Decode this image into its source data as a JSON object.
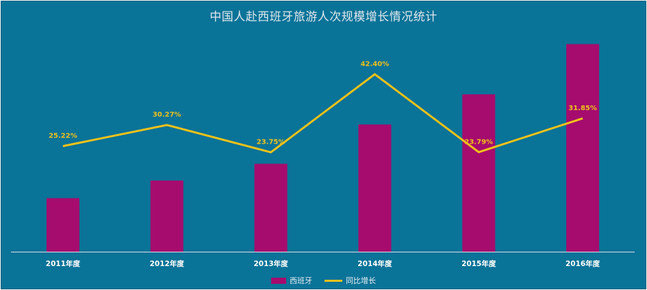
{
  "chart_data": {
    "type": "bar+line",
    "title": "中国人赴西班牙旅游人次规模增长情况统计",
    "categories": [
      "2011年度",
      "2012年度",
      "2013年度",
      "2014年度",
      "2015年度",
      "2016年度"
    ],
    "series": [
      {
        "name": "西班牙",
        "type": "bar",
        "axis": "primary",
        "values": [
          64,
          85,
          105,
          152,
          188,
          248
        ],
        "color": "#a50c6e"
      },
      {
        "name": "同比增长",
        "type": "line",
        "axis": "secondary",
        "values": [
          25.22,
          30.27,
          23.75,
          42.4,
          23.79,
          31.85
        ],
        "labels": [
          "25.22%",
          "30.27%",
          "23.75%",
          "42.40%",
          "23.79%",
          "31.85%"
        ],
        "color": "#f2c218"
      }
    ],
    "ylim": [
      0,
      250
    ],
    "y2lim": [
      0,
      50
    ],
    "grid": false,
    "legend_position": "bottom",
    "colors": {
      "background": "#0a7398",
      "title": "#dfe8ee",
      "label_text": "#ffffff",
      "line_label": "#f2c218"
    }
  }
}
